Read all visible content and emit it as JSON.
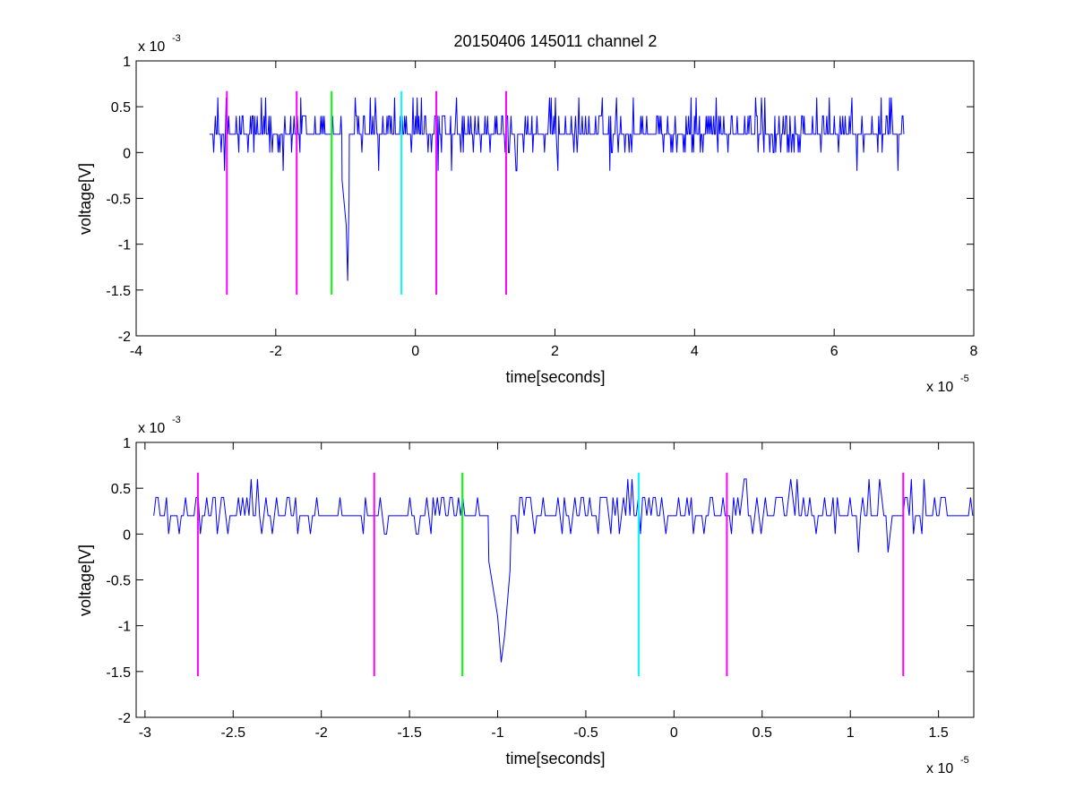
{
  "chart_data": [
    {
      "type": "line",
      "title": "20150406 145011 channel 2",
      "xlabel": "time[seconds]",
      "ylabel": "voltage[V]",
      "x_exponent_base": "x 10",
      "x_exponent": "-5",
      "y_exponent_base": "x 10",
      "y_exponent": "-3",
      "xlim": [
        -4,
        8
      ],
      "ylim": [
        -2,
        1
      ],
      "x_ticks": [
        -4,
        -2,
        0,
        2,
        4,
        6,
        8
      ],
      "x_tick_labels": [
        "-4",
        "-2",
        "0",
        "2",
        "4",
        "6",
        "8"
      ],
      "y_ticks": [
        -2,
        -1.5,
        -1,
        -0.5,
        0,
        0.5,
        1
      ],
      "y_tick_labels": [
        "-2",
        "-1.5",
        "-1",
        "-0.5",
        "0",
        "0.5",
        "1"
      ],
      "grid": false,
      "trace_color": "#0000ff",
      "signal_range": [
        -2.95,
        7.0
      ],
      "baseline": 0.2,
      "spike": {
        "x": [
          -1.05,
          -0.99,
          -0.97,
          -0.95
        ],
        "y": [
          -0.3,
          -0.8,
          -1.4,
          -0.5
        ]
      },
      "markers": [
        {
          "x": -2.7,
          "y": [
            -1.55,
            0.67
          ],
          "color": "#ff00ff"
        },
        {
          "x": -1.7,
          "y": [
            -1.55,
            0.67
          ],
          "color": "#ff00ff"
        },
        {
          "x": -1.2,
          "y": [
            -1.55,
            0.67
          ],
          "color": "#00ff00"
        },
        {
          "x": -0.2,
          "y": [
            -1.55,
            0.67
          ],
          "color": "#00ffff"
        },
        {
          "x": 0.3,
          "y": [
            -1.55,
            0.67
          ],
          "color": "#ff00ff"
        },
        {
          "x": 1.3,
          "y": [
            -1.55,
            0.67
          ],
          "color": "#ff00ff"
        }
      ]
    },
    {
      "type": "line",
      "title": "",
      "xlabel": "time[seconds]",
      "ylabel": "voltage[V]",
      "x_exponent_base": "x 10",
      "x_exponent": "-5",
      "y_exponent_base": "x 10",
      "y_exponent": "-3",
      "xlim": [
        -3.05,
        1.7
      ],
      "ylim": [
        -2,
        1
      ],
      "x_ticks": [
        -3,
        -2.5,
        -2,
        -1.5,
        -1,
        -0.5,
        0,
        0.5,
        1,
        1.5
      ],
      "x_tick_labels": [
        "-3",
        "-2.5",
        "-2",
        "-1.5",
        "-1",
        "-0.5",
        "0",
        "0.5",
        "1",
        "1.5"
      ],
      "y_ticks": [
        -2,
        -1.5,
        -1,
        -0.5,
        0,
        0.5,
        1
      ],
      "y_tick_labels": [
        "-2",
        "-1.5",
        "-1",
        "-0.5",
        "0",
        "0.5",
        "1"
      ],
      "grid": false,
      "trace_color": "#0000ff",
      "signal_range": [
        -2.95,
        1.7
      ],
      "baseline": 0.2,
      "spike": {
        "x": [
          -1.05,
          -1.0,
          -0.98,
          -0.96,
          -0.93
        ],
        "y": [
          -0.3,
          -0.9,
          -1.4,
          -1.1,
          -0.4
        ]
      },
      "markers": [
        {
          "x": -2.7,
          "y": [
            -1.55,
            0.67
          ],
          "color": "#ff00ff"
        },
        {
          "x": -1.7,
          "y": [
            -1.55,
            0.67
          ],
          "color": "#ff00ff"
        },
        {
          "x": -1.2,
          "y": [
            -1.55,
            0.67
          ],
          "color": "#00ff00"
        },
        {
          "x": -0.2,
          "y": [
            -1.55,
            0.67
          ],
          "color": "#00ffff"
        },
        {
          "x": 0.3,
          "y": [
            -1.55,
            0.67
          ],
          "color": "#ff00ff"
        },
        {
          "x": 1.3,
          "y": [
            -1.55,
            0.67
          ],
          "color": "#ff00ff"
        }
      ]
    }
  ]
}
